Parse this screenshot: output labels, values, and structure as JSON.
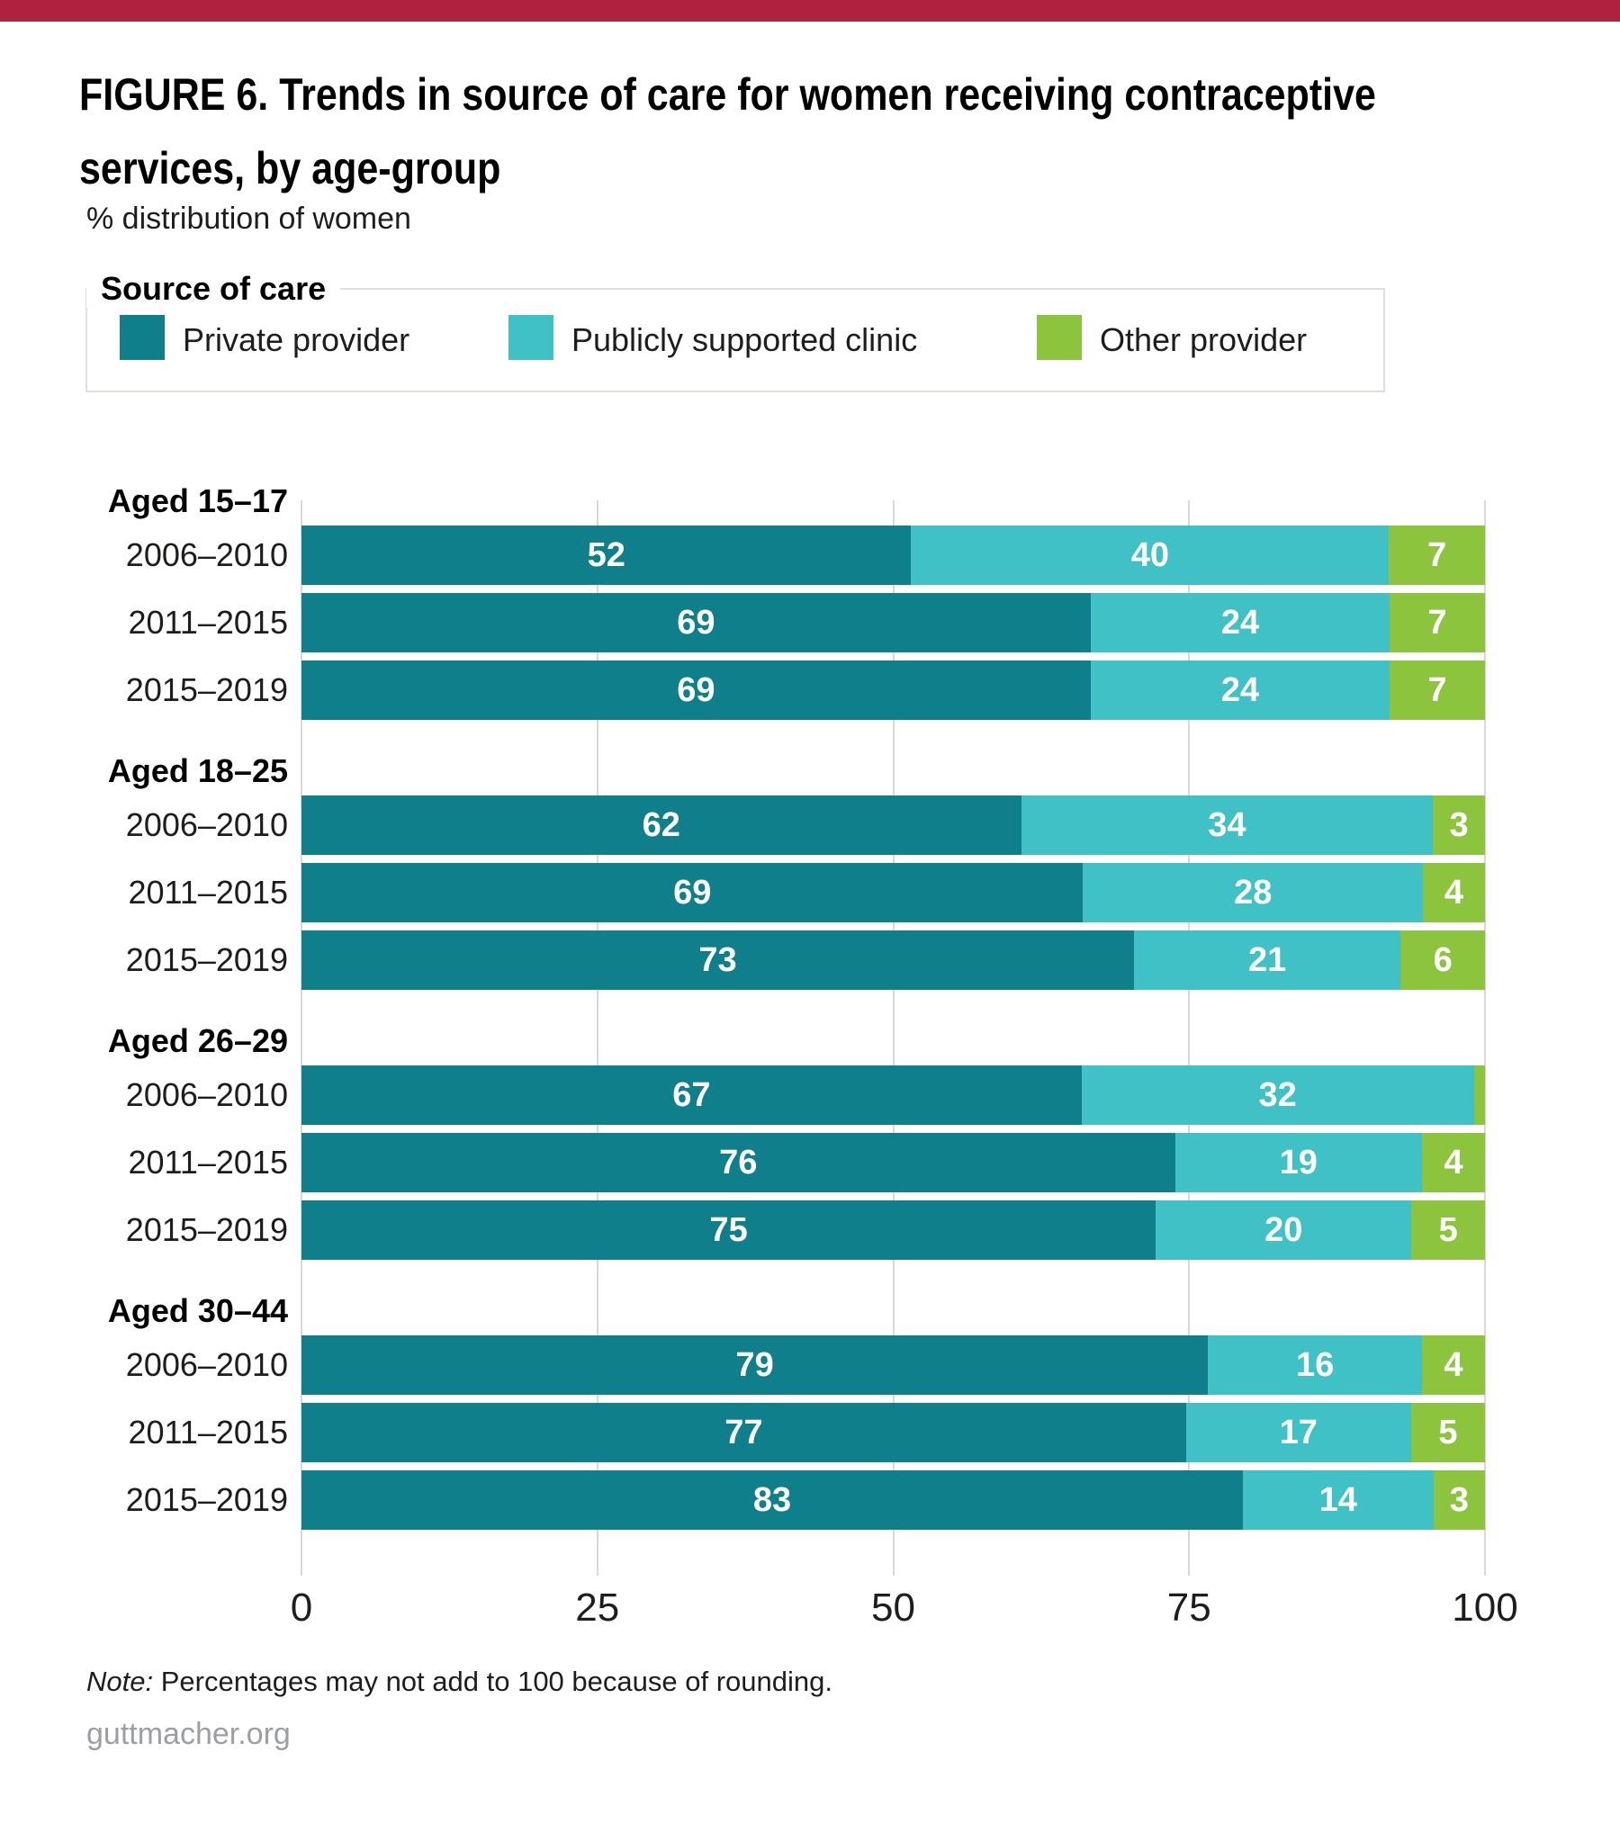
{
  "banner": {
    "color": "#b0203f"
  },
  "title": {
    "line1": "FIGURE 6. Trends in source of care for women receiving contraceptive",
    "line2": "services, by age-group"
  },
  "subtitle": "% distribution of women",
  "legend": {
    "title": "Source of care",
    "items": [
      {
        "label": "Private provider",
        "color": "#0e7f8b"
      },
      {
        "label": "Publicly supported clinic",
        "color": "#3fc1c5"
      },
      {
        "label": "Other provider",
        "color": "#8cc43e"
      }
    ]
  },
  "chart_data": {
    "type": "bar",
    "orientation": "horizontal",
    "stacked": true,
    "normalized_to": 100,
    "series_names": [
      "Private provider",
      "Publicly supported clinic",
      "Other provider"
    ],
    "series_colors": [
      "#0e7f8b",
      "#3fc1c5",
      "#8cc43e"
    ],
    "grid_color": "#dbd8d4",
    "x_axis": {
      "range": [
        0,
        100
      ],
      "ticks": [
        "0",
        "25",
        "50",
        "75",
        "100"
      ]
    },
    "groups": [
      {
        "label": "Aged 15–17",
        "rows": [
          {
            "period": "2006–2010",
            "values": [
              52,
              40,
              7
            ],
            "labels": [
              "52",
              "40",
              "7"
            ]
          },
          {
            "period": "2011–2015",
            "values": [
              69,
              24,
              7
            ],
            "labels": [
              "69",
              "24",
              "7"
            ]
          },
          {
            "period": "2015–2019",
            "values": [
              69,
              24,
              7
            ],
            "labels": [
              "69",
              "24",
              "7"
            ]
          }
        ]
      },
      {
        "label": "Aged 18–25",
        "rows": [
          {
            "period": "2006–2010",
            "values": [
              62,
              34,
              3
            ],
            "labels": [
              "62",
              "34",
              "3"
            ]
          },
          {
            "period": "2011–2015",
            "values": [
              69,
              28,
              4
            ],
            "labels": [
              "69",
              "28",
              "4"
            ]
          },
          {
            "period": "2015–2019",
            "values": [
              73,
              21,
              6
            ],
            "labels": [
              "73",
              "21",
              "6"
            ]
          }
        ]
      },
      {
        "label": "Aged 26–29",
        "rows": [
          {
            "period": "2006–2010",
            "values": [
              67,
              32,
              1
            ],
            "labels": [
              "67",
              "32",
              ""
            ]
          },
          {
            "period": "2011–2015",
            "values": [
              76,
              19,
              4
            ],
            "labels": [
              "76",
              "19",
              "4"
            ]
          },
          {
            "period": "2015–2019",
            "values": [
              75,
              20,
              5
            ],
            "labels": [
              "75",
              "20",
              "5"
            ]
          }
        ]
      },
      {
        "label": "Aged 30–44",
        "rows": [
          {
            "period": "2006–2010",
            "values": [
              79,
              16,
              4
            ],
            "labels": [
              "79",
              "16",
              "4"
            ]
          },
          {
            "period": "2011–2015",
            "values": [
              77,
              17,
              5
            ],
            "labels": [
              "77",
              "17",
              "5"
            ]
          },
          {
            "period": "2015–2019",
            "values": [
              83,
              14,
              3
            ],
            "labels": [
              "83",
              "14",
              "3"
            ]
          }
        ]
      }
    ]
  },
  "note": {
    "prefix": "Note:",
    "text": " Percentages may not add to 100 because of rounding."
  },
  "footer": {
    "text": "guttmacher.org",
    "color": "#9c9ea1"
  }
}
